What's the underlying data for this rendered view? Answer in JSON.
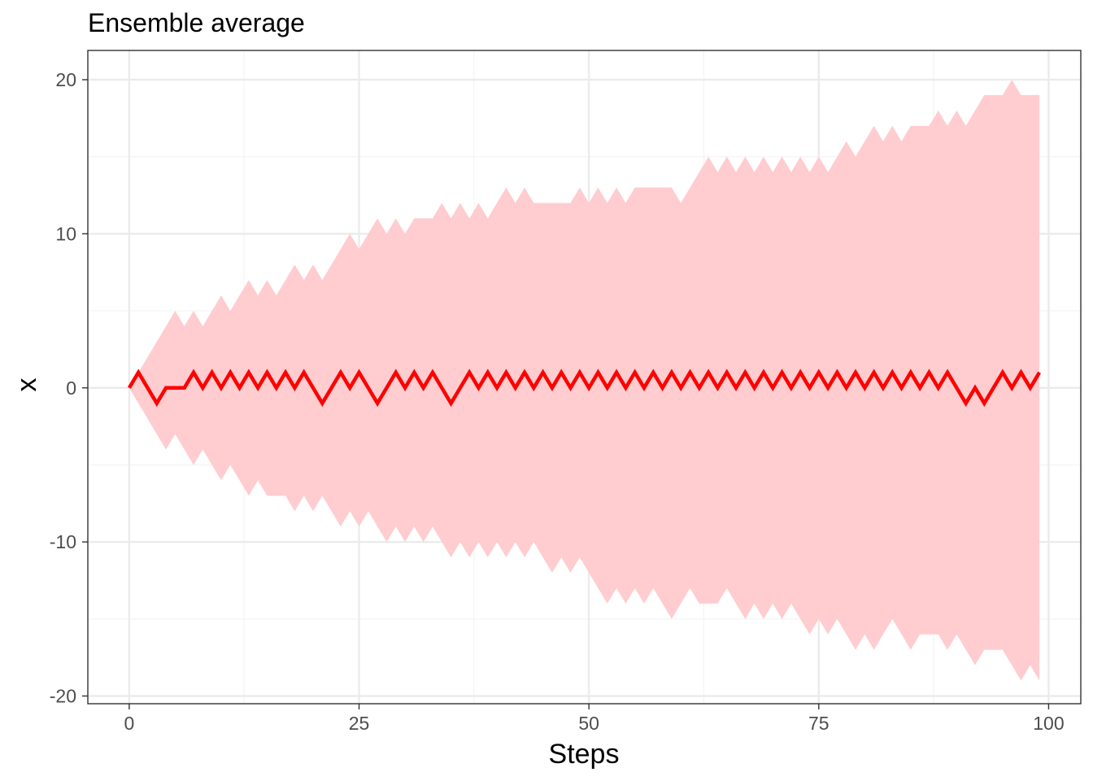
{
  "chart_data": {
    "type": "area",
    "title": "Ensemble average",
    "xlabel": "Steps",
    "ylabel": "x",
    "xlim": [
      -4.5,
      103.5
    ],
    "ylim": [
      -20.5,
      21.9
    ],
    "x_ticks": [
      0,
      25,
      50,
      75,
      100
    ],
    "y_ticks": [
      -20,
      -10,
      0,
      10,
      20
    ],
    "x_tick_labels": [
      "0",
      "25",
      "50",
      "75",
      "100"
    ],
    "y_tick_labels": [
      "-20",
      "-10",
      "0",
      "10",
      "20"
    ],
    "grid": true,
    "legend": "none",
    "colors": {
      "line": "#ff0000",
      "band": "#ffcccf",
      "grid_major": "#ebebeb",
      "grid_minor": "#f3f3f3",
      "border": "#333333"
    },
    "series": [
      {
        "kind": "line",
        "x_start": 0,
        "y": [
          0,
          1,
          0,
          -1,
          0,
          0,
          0,
          1,
          0,
          1,
          0,
          1,
          0,
          1,
          0,
          1,
          0,
          1,
          0,
          1,
          0,
          -1,
          0,
          1,
          0,
          1,
          0,
          -1,
          0,
          1,
          0,
          1,
          0,
          1,
          0,
          -1,
          0,
          1,
          0,
          1,
          0,
          1,
          0,
          1,
          0,
          1,
          0,
          1,
          0,
          1,
          0,
          1,
          0,
          1,
          0,
          1,
          0,
          1,
          0,
          1,
          0,
          1,
          0,
          1,
          0,
          1,
          0,
          1,
          0,
          1,
          0,
          1,
          0,
          1,
          0,
          1,
          0,
          1,
          0,
          1,
          0,
          1,
          0,
          1,
          0,
          1,
          0,
          1,
          0,
          1,
          0,
          -1,
          0,
          -1,
          0,
          1,
          0,
          1,
          0,
          1
        ]
      },
      {
        "kind": "band",
        "x_start": 0,
        "upper": [
          0,
          1,
          2,
          3,
          4,
          5,
          4,
          5,
          4,
          5,
          6,
          5,
          6,
          7,
          6,
          7,
          6,
          7,
          8,
          7,
          8,
          7,
          8,
          9,
          10,
          9,
          10,
          11,
          10,
          11,
          10,
          11,
          11,
          11,
          12,
          11,
          12,
          11,
          12,
          11,
          12,
          13,
          12,
          13,
          12,
          12,
          12,
          12,
          12,
          13,
          12,
          13,
          12,
          13,
          12,
          13,
          13,
          13,
          13,
          13,
          12,
          13,
          14,
          15,
          14,
          15,
          14,
          15,
          14,
          15,
          14,
          15,
          14,
          15,
          14,
          15,
          14,
          15,
          16,
          15,
          16,
          17,
          16,
          17,
          16,
          17,
          17,
          17,
          18,
          17,
          18,
          17,
          18,
          19,
          19,
          19,
          20,
          19,
          19,
          19
        ],
        "lower": [
          0,
          -1,
          -2,
          -3,
          -4,
          -3,
          -4,
          -5,
          -4,
          -5,
          -6,
          -5,
          -6,
          -7,
          -6,
          -7,
          -7,
          -7,
          -8,
          -7,
          -8,
          -7,
          -8,
          -9,
          -8,
          -9,
          -8,
          -9,
          -10,
          -9,
          -10,
          -9,
          -10,
          -9,
          -10,
          -11,
          -10,
          -11,
          -10,
          -11,
          -10,
          -11,
          -10,
          -11,
          -10,
          -11,
          -12,
          -11,
          -12,
          -11,
          -12,
          -13,
          -14,
          -13,
          -14,
          -13,
          -14,
          -13,
          -14,
          -15,
          -14,
          -13,
          -14,
          -14,
          -14,
          -13,
          -14,
          -15,
          -14,
          -15,
          -14,
          -15,
          -14,
          -15,
          -16,
          -15,
          -16,
          -15,
          -16,
          -17,
          -16,
          -17,
          -16,
          -15,
          -16,
          -17,
          -16,
          -16,
          -16,
          -17,
          -16,
          -17,
          -18,
          -17,
          -17,
          -17,
          -18,
          -19,
          -18,
          -19
        ]
      }
    ]
  }
}
